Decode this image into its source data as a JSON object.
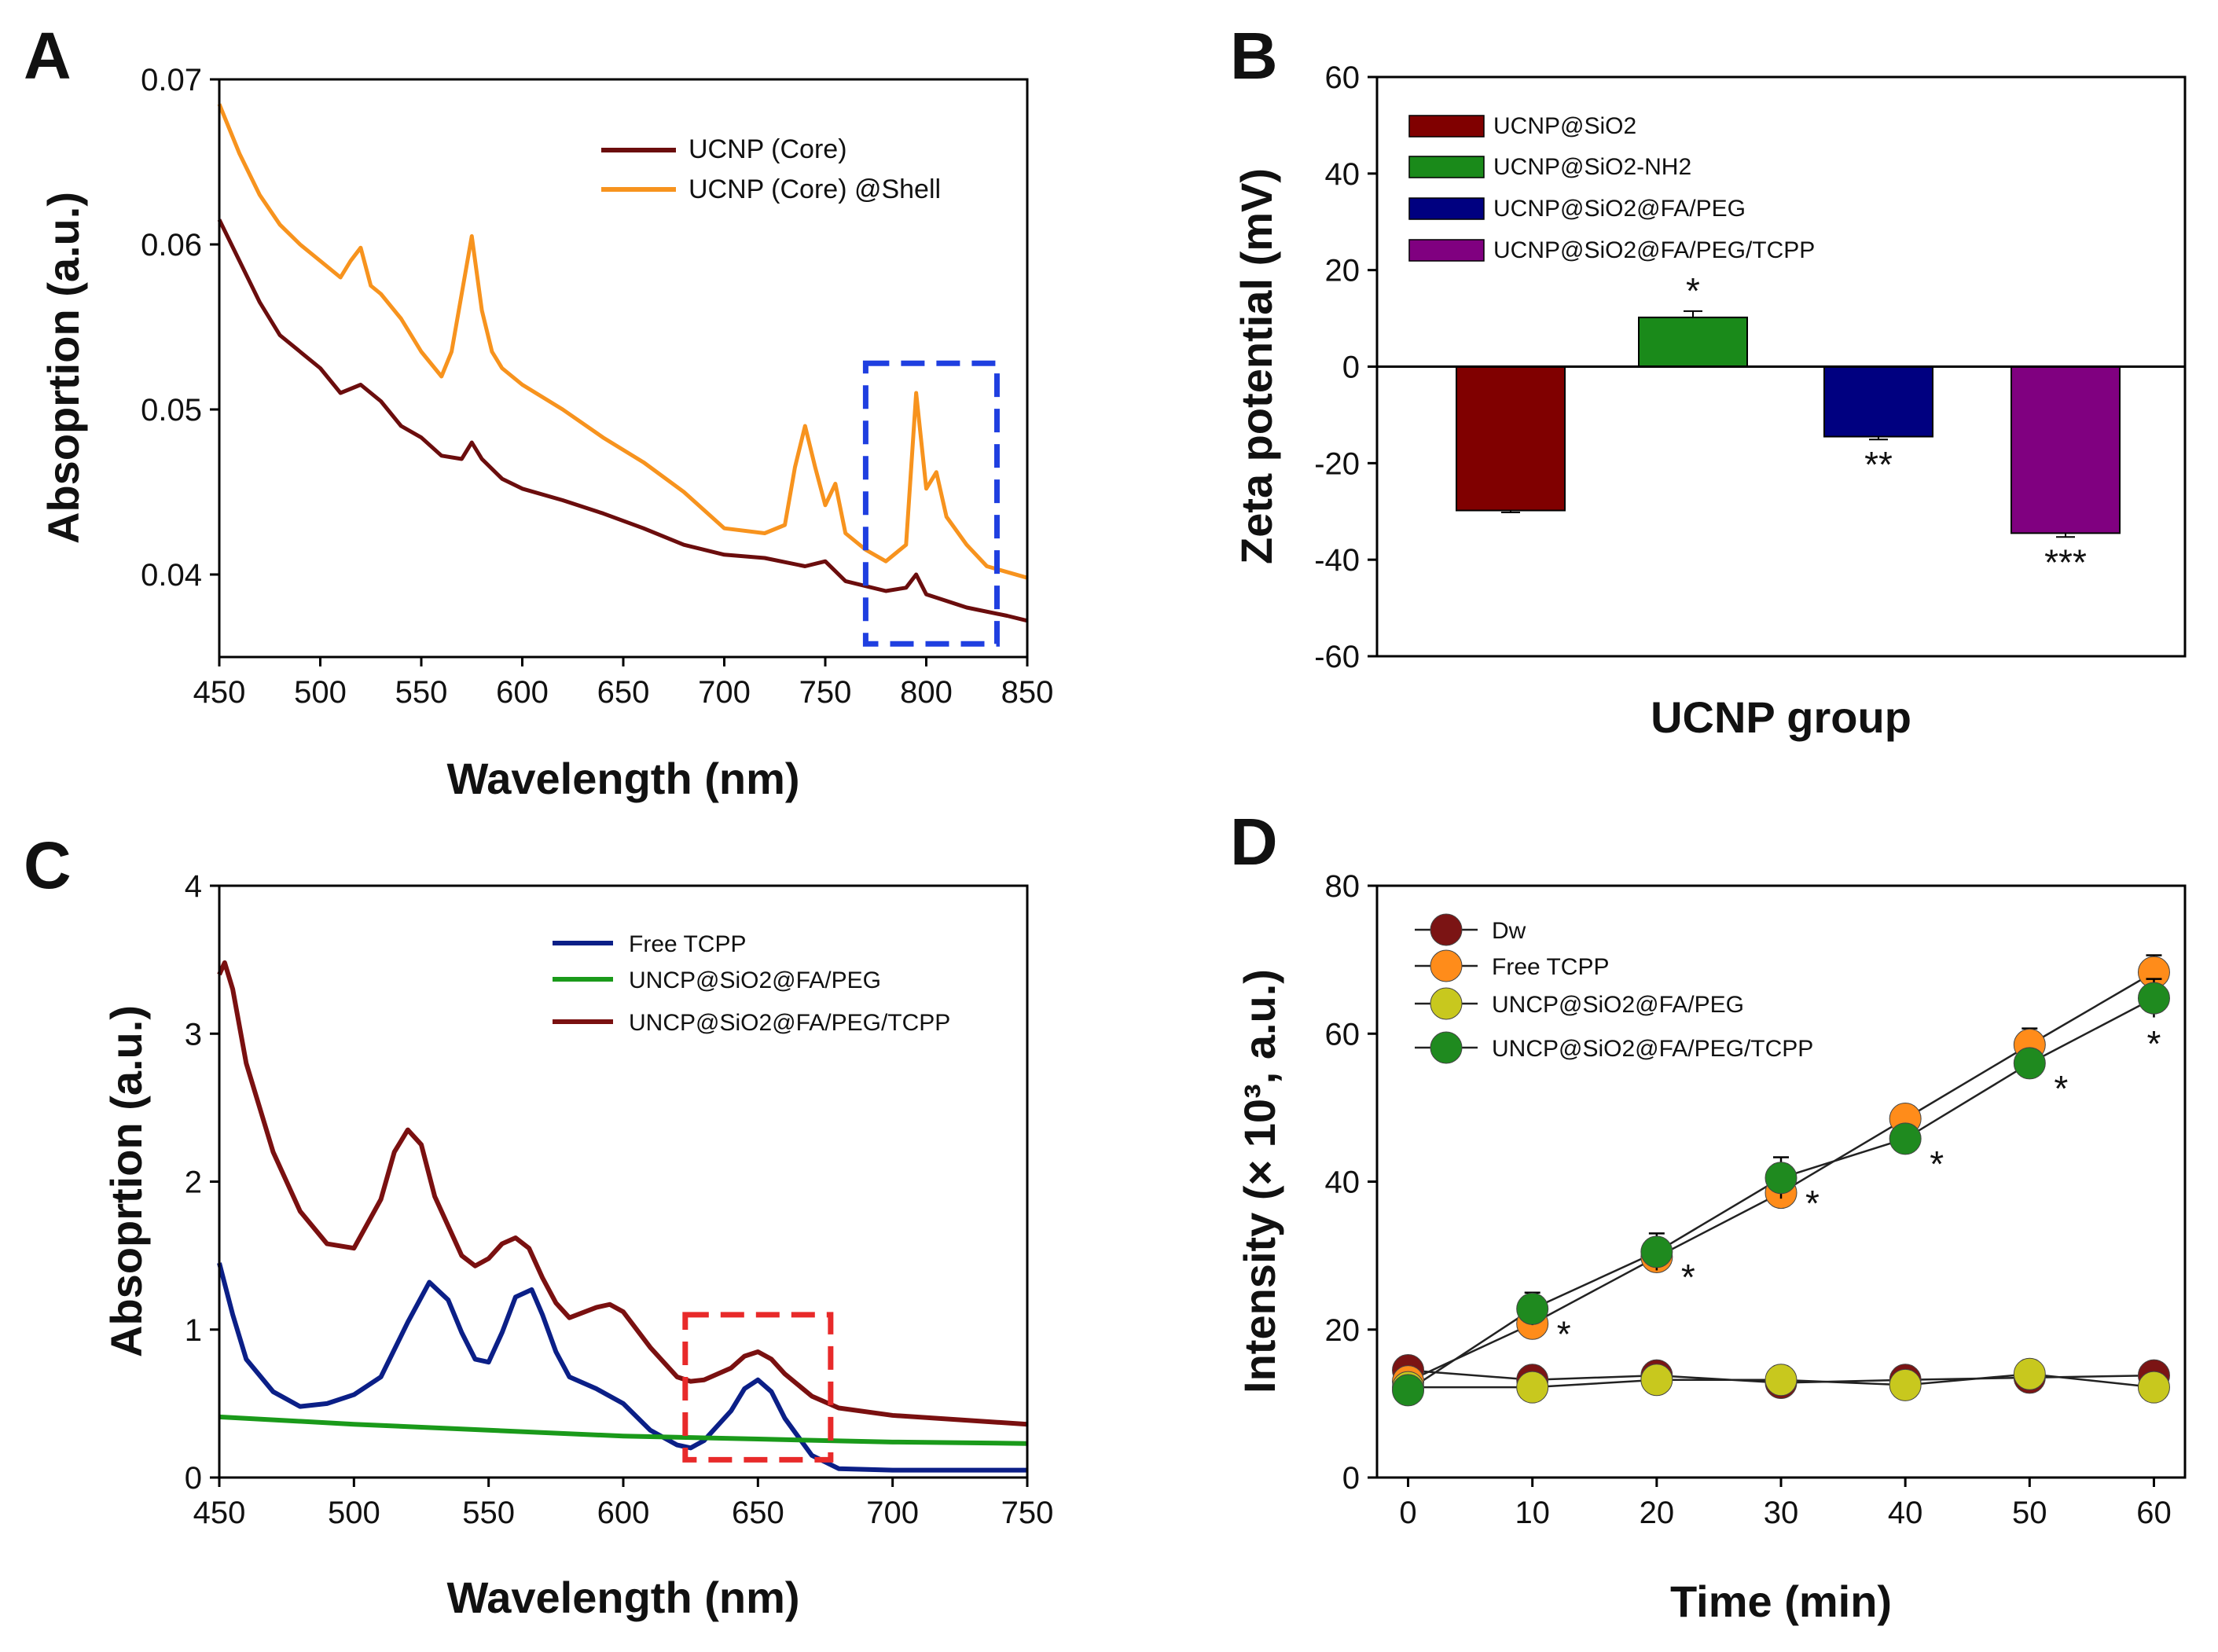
{
  "figure_title": "",
  "colors": {
    "dark_red": "#6b0d0d",
    "orange": "#f7931e",
    "dark_red_bar": "#800000",
    "green_bar": "#1a8a1a",
    "navy_bar": "#000080",
    "purple_bar": "#800080",
    "navy_line": "#0b1f87",
    "green_line": "#1a9a1a",
    "maroon_line": "#7a1010",
    "dot_maroon": "#7b1414",
    "dot_orange": "#ff8c1a",
    "dot_yellow": "#c8c81e",
    "dot_green": "#1f8a1f",
    "blue_box": "#1f3fe0",
    "red_box": "#e82a2a"
  },
  "chart_data": [
    {
      "panel": "A",
      "type": "line",
      "xlabel": "Wavelength (nm)",
      "ylabel": "Absoprtion (a.u.)",
      "xlim": [
        450,
        850
      ],
      "ylim": [
        0.035,
        0.07
      ],
      "xticks": [
        "450",
        "500",
        "550",
        "600",
        "650",
        "700",
        "750",
        "800",
        "850"
      ],
      "yticks": [
        "0.04",
        "0.05",
        "0.06",
        "0.07"
      ],
      "series": [
        {
          "name": "UCNP (Core)",
          "x": [
            450,
            460,
            470,
            480,
            490,
            500,
            510,
            520,
            530,
            540,
            550,
            560,
            570,
            575,
            580,
            590,
            600,
            620,
            640,
            660,
            680,
            700,
            720,
            740,
            750,
            760,
            780,
            790,
            795,
            800,
            820,
            840,
            850
          ],
          "values": [
            0.0615,
            0.059,
            0.0565,
            0.0545,
            0.0535,
            0.0525,
            0.051,
            0.0515,
            0.0505,
            0.049,
            0.0483,
            0.0472,
            0.047,
            0.048,
            0.047,
            0.0458,
            0.0452,
            0.0445,
            0.0437,
            0.0428,
            0.0418,
            0.0412,
            0.041,
            0.0405,
            0.0408,
            0.0396,
            0.039,
            0.0392,
            0.04,
            0.0388,
            0.038,
            0.0375,
            0.0372
          ]
        },
        {
          "name": "UCNP (Core) @Shell",
          "x": [
            450,
            460,
            470,
            480,
            490,
            500,
            510,
            515,
            520,
            525,
            530,
            540,
            550,
            560,
            565,
            570,
            575,
            580,
            585,
            590,
            600,
            620,
            640,
            660,
            680,
            700,
            720,
            730,
            735,
            740,
            745,
            750,
            755,
            760,
            770,
            780,
            790,
            795,
            800,
            805,
            810,
            820,
            830,
            850
          ],
          "values": [
            0.0685,
            0.0655,
            0.063,
            0.0612,
            0.06,
            0.059,
            0.058,
            0.059,
            0.0598,
            0.0575,
            0.057,
            0.0555,
            0.0535,
            0.052,
            0.0535,
            0.057,
            0.0605,
            0.056,
            0.0535,
            0.0525,
            0.0515,
            0.05,
            0.0483,
            0.0468,
            0.045,
            0.0428,
            0.0425,
            0.043,
            0.0465,
            0.049,
            0.0465,
            0.0442,
            0.0455,
            0.0425,
            0.0415,
            0.0408,
            0.0418,
            0.051,
            0.0452,
            0.0462,
            0.0435,
            0.0418,
            0.0405,
            0.0398
          ]
        }
      ],
      "highlight_box_x": [
        770,
        835
      ],
      "highlight_box_y": [
        0.0358,
        0.0528
      ]
    },
    {
      "panel": "B",
      "type": "bar",
      "xlabel": "UCNP group",
      "ylabel": "Zeta potential (mV)",
      "ylim": [
        -60,
        60
      ],
      "yticks": [
        "-60",
        "-40",
        "-20",
        "0",
        "20",
        "40",
        "60"
      ],
      "categories": [
        "UCNP@SiO2",
        "UCNP@SiO2-NH2",
        "UCNP@SiO2@FA/PEG",
        "UCNP@SiO2@FA/PEG/TCPP"
      ],
      "values": [
        -29.8,
        10.2,
        -14.5,
        -34.5
      ],
      "errors": [
        0.4,
        1.3,
        0.6,
        0.8
      ],
      "significance": [
        "",
        "*",
        "**",
        "***"
      ]
    },
    {
      "panel": "C",
      "type": "line",
      "xlabel": "Wavelength (nm)",
      "ylabel": "Absoprtion (a.u.)",
      "xlim": [
        450,
        750
      ],
      "ylim": [
        0,
        4
      ],
      "xticks": [
        "450",
        "500",
        "550",
        "600",
        "650",
        "700",
        "750"
      ],
      "yticks": [
        "0",
        "1",
        "2",
        "3",
        "4"
      ],
      "series": [
        {
          "name": "Free TCPP",
          "x": [
            450,
            455,
            460,
            470,
            480,
            490,
            500,
            510,
            520,
            528,
            535,
            540,
            545,
            550,
            555,
            560,
            566,
            570,
            575,
            580,
            590,
            600,
            610,
            620,
            625,
            630,
            640,
            645,
            650,
            655,
            660,
            670,
            680,
            700,
            750
          ],
          "values": [
            1.45,
            1.1,
            0.8,
            0.58,
            0.48,
            0.5,
            0.56,
            0.68,
            1.05,
            1.32,
            1.2,
            0.98,
            0.8,
            0.78,
            0.98,
            1.22,
            1.27,
            1.1,
            0.85,
            0.68,
            0.6,
            0.5,
            0.32,
            0.22,
            0.2,
            0.25,
            0.45,
            0.6,
            0.66,
            0.58,
            0.4,
            0.15,
            0.06,
            0.05,
            0.05
          ]
        },
        {
          "name": "UNCP@SiO2@FA/PEG",
          "x": [
            450,
            500,
            550,
            600,
            650,
            700,
            750
          ],
          "values": [
            0.41,
            0.36,
            0.32,
            0.28,
            0.26,
            0.24,
            0.23
          ]
        },
        {
          "name": "UNCP@SiO2@FA/PEG/TCPP",
          "x": [
            450,
            452,
            455,
            460,
            470,
            480,
            490,
            500,
            510,
            515,
            520,
            525,
            530,
            540,
            545,
            550,
            555,
            560,
            565,
            570,
            575,
            580,
            590,
            595,
            600,
            610,
            620,
            625,
            630,
            640,
            645,
            650,
            655,
            660,
            670,
            680,
            700,
            750
          ],
          "values": [
            3.4,
            3.48,
            3.3,
            2.8,
            2.2,
            1.8,
            1.58,
            1.55,
            1.88,
            2.2,
            2.35,
            2.25,
            1.9,
            1.5,
            1.43,
            1.48,
            1.58,
            1.62,
            1.55,
            1.35,
            1.18,
            1.08,
            1.15,
            1.17,
            1.12,
            0.88,
            0.68,
            0.65,
            0.66,
            0.74,
            0.82,
            0.85,
            0.8,
            0.7,
            0.55,
            0.47,
            0.42,
            0.36
          ]
        }
      ],
      "highlight_box_x": [
        623,
        677
      ],
      "highlight_box_y": [
        0.12,
        1.1
      ]
    },
    {
      "panel": "D",
      "type": "scatter",
      "xlabel": "Time (min)",
      "ylabel": "Intensity (× 10³, a.u.)",
      "xlim": [
        -2.5,
        62.5
      ],
      "ylim": [
        0,
        80
      ],
      "xticks": [
        "0",
        "10",
        "20",
        "30",
        "40",
        "50",
        "60"
      ],
      "yticks": [
        "0",
        "20",
        "40",
        "60",
        "80"
      ],
      "x": [
        0,
        10,
        20,
        30,
        40,
        50,
        60
      ],
      "series": [
        {
          "name": "Dw",
          "values": [
            14.5,
            13.2,
            13.8,
            12.8,
            13.2,
            13.5,
            13.8
          ],
          "errors": [
            0.4,
            0.4,
            0.4,
            0.4,
            0.4,
            0.4,
            0.4
          ]
        },
        {
          "name": "Free TCPP",
          "values": [
            13.0,
            20.8,
            29.8,
            38.5,
            48.5,
            58.5,
            68.3
          ],
          "errors": [
            0.5,
            1.0,
            1.5,
            1.5,
            1.0,
            2.2,
            2.3
          ]
        },
        {
          "name": "UNCP@SiO2@FA/PEG",
          "values": [
            12.2,
            12.2,
            13.2,
            13.2,
            12.5,
            14.0,
            12.2
          ],
          "errors": [
            0.4,
            0.4,
            0.4,
            0.4,
            0.4,
            0.4,
            0.4
          ]
        },
        {
          "name": "UNCP@SiO2@FA/PEG/TCPP",
          "values": [
            11.8,
            22.8,
            30.5,
            40.5,
            45.8,
            56.0,
            64.8
          ],
          "errors": [
            0.5,
            2.2,
            2.5,
            2.8,
            1.0,
            1.5,
            2.6
          ]
        }
      ],
      "significance": [
        "",
        "*",
        "*",
        "*",
        "*",
        "*",
        "*"
      ]
    }
  ]
}
